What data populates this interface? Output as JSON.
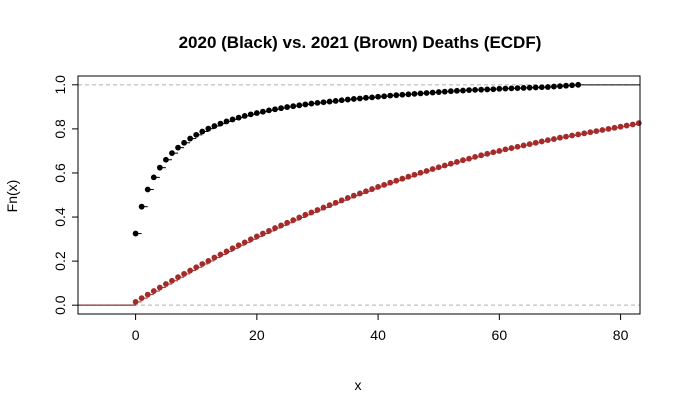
{
  "chart_data": {
    "type": "scatter",
    "title": "2020 (Black) vs. 2021 (Brown) Deaths (ECDF)",
    "xlabel": "x",
    "ylabel": "Fn(x)",
    "xlim": [
      -9.5,
      83.2
    ],
    "ylim": [
      -0.04,
      1.04
    ],
    "xticks": [
      "0",
      "20",
      "40",
      "60",
      "80"
    ],
    "xtick_values": [
      0,
      20,
      40,
      60,
      80
    ],
    "yticks": [
      "0.0",
      "0.2",
      "0.4",
      "0.6",
      "0.8",
      "1.0"
    ],
    "ytick_values": [
      0,
      0.2,
      0.4,
      0.6,
      0.8,
      1.0
    ],
    "reference_lines": [
      0,
      1
    ],
    "grid": false,
    "series": [
      {
        "color": "#000000",
        "step_end_x": 74,
        "x": [
          0,
          1,
          2,
          3,
          4,
          5,
          6,
          7,
          8,
          9,
          10,
          11,
          12,
          13,
          14,
          15,
          16,
          17,
          18,
          19,
          20,
          21,
          22,
          23,
          24,
          25,
          26,
          27,
          28,
          29,
          30,
          31,
          32,
          33,
          34,
          35,
          36,
          37,
          38,
          39,
          40,
          41,
          42,
          43,
          44,
          45,
          46,
          47,
          48,
          49,
          50,
          51,
          52,
          53,
          54,
          55,
          56,
          57,
          58,
          59,
          60,
          61,
          62,
          63,
          64,
          65,
          66,
          67,
          68,
          69,
          70,
          71,
          72,
          73
        ],
        "y": [
          0.325,
          0.447,
          0.525,
          0.58,
          0.624,
          0.66,
          0.69,
          0.715,
          0.737,
          0.756,
          0.773,
          0.788,
          0.801,
          0.813,
          0.824,
          0.834,
          0.843,
          0.851,
          0.859,
          0.866,
          0.872,
          0.878,
          0.884,
          0.889,
          0.894,
          0.899,
          0.903,
          0.907,
          0.911,
          0.915,
          0.918,
          0.921,
          0.924,
          0.927,
          0.93,
          0.933,
          0.936,
          0.938,
          0.941,
          0.943,
          0.946,
          0.948,
          0.951,
          0.953,
          0.955,
          0.957,
          0.959,
          0.961,
          0.963,
          0.965,
          0.967,
          0.969,
          0.971,
          0.973,
          0.974,
          0.976,
          0.977,
          0.978,
          0.979,
          0.98,
          0.982,
          0.983,
          0.984,
          0.985,
          0.986,
          0.987,
          0.988,
          0.989,
          0.99,
          0.992,
          0.994,
          0.996,
          0.998,
          1.0
        ]
      },
      {
        "color": "#A52A2A",
        "x": [
          0,
          1,
          2,
          3,
          4,
          5,
          6,
          7,
          8,
          9,
          10,
          11,
          12,
          13,
          14,
          15,
          16,
          17,
          18,
          19,
          20,
          21,
          22,
          23,
          24,
          25,
          26,
          27,
          28,
          29,
          30,
          31,
          32,
          33,
          34,
          35,
          36,
          37,
          38,
          39,
          40,
          41,
          42,
          43,
          44,
          45,
          46,
          47,
          48,
          49,
          50,
          51,
          52,
          53,
          54,
          55,
          56,
          57,
          58,
          59,
          60,
          61,
          62,
          63,
          64,
          65,
          66,
          67,
          68,
          69,
          70,
          71,
          72,
          73,
          74,
          75,
          76,
          77,
          78,
          79,
          80,
          81,
          82,
          83
        ],
        "y": [
          0.015,
          0.032,
          0.048,
          0.064,
          0.08,
          0.096,
          0.111,
          0.127,
          0.142,
          0.157,
          0.172,
          0.187,
          0.201,
          0.216,
          0.23,
          0.244,
          0.258,
          0.272,
          0.285,
          0.299,
          0.312,
          0.325,
          0.337,
          0.35,
          0.362,
          0.374,
          0.386,
          0.398,
          0.41,
          0.421,
          0.432,
          0.443,
          0.454,
          0.465,
          0.476,
          0.487,
          0.497,
          0.507,
          0.517,
          0.527,
          0.537,
          0.546,
          0.556,
          0.565,
          0.574,
          0.583,
          0.592,
          0.601,
          0.609,
          0.618,
          0.626,
          0.634,
          0.642,
          0.65,
          0.658,
          0.665,
          0.673,
          0.68,
          0.687,
          0.694,
          0.7,
          0.707,
          0.713,
          0.719,
          0.725,
          0.731,
          0.737,
          0.743,
          0.749,
          0.754,
          0.76,
          0.765,
          0.77,
          0.775,
          0.78,
          0.785,
          0.79,
          0.795,
          0.8,
          0.805,
          0.81,
          0.815,
          0.82,
          0.826
        ]
      }
    ]
  }
}
